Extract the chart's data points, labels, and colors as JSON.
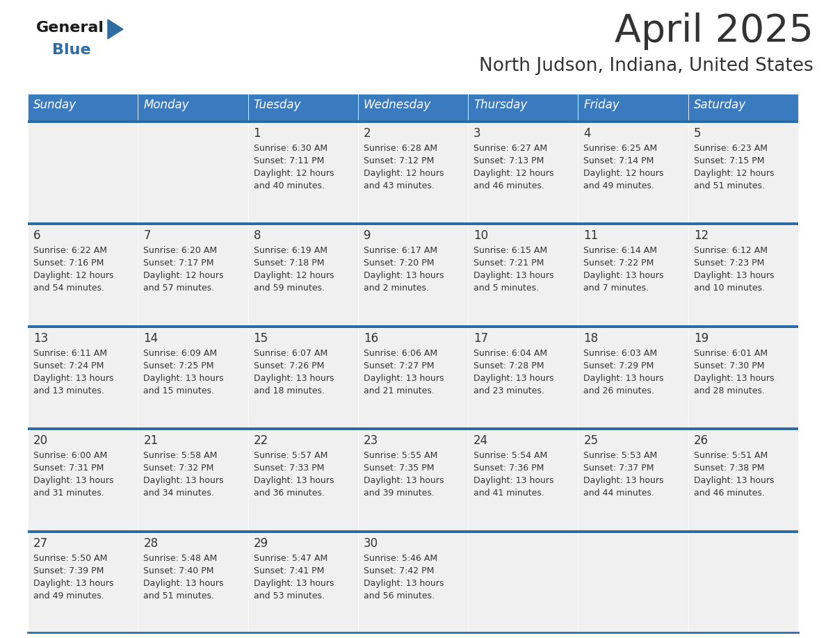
{
  "title": "April 2025",
  "subtitle": "North Judson, Indiana, United States",
  "days_of_week": [
    "Sunday",
    "Monday",
    "Tuesday",
    "Wednesday",
    "Thursday",
    "Friday",
    "Saturday"
  ],
  "header_bg": "#3a7abf",
  "header_text": "#ffffff",
  "cell_bg": "#f0f0f0",
  "row_line_color": "#2e6da4",
  "text_color": "#333333",
  "logo_black": "#1a1a1a",
  "logo_blue": "#2e6da4",
  "calendar": [
    [
      {
        "day": "",
        "sunrise": "",
        "sunset": "",
        "daylight1": "",
        "daylight2": ""
      },
      {
        "day": "",
        "sunrise": "",
        "sunset": "",
        "daylight1": "",
        "daylight2": ""
      },
      {
        "day": "1",
        "sunrise": "Sunrise: 6:30 AM",
        "sunset": "Sunset: 7:11 PM",
        "daylight1": "Daylight: 12 hours",
        "daylight2": "and 40 minutes."
      },
      {
        "day": "2",
        "sunrise": "Sunrise: 6:28 AM",
        "sunset": "Sunset: 7:12 PM",
        "daylight1": "Daylight: 12 hours",
        "daylight2": "and 43 minutes."
      },
      {
        "day": "3",
        "sunrise": "Sunrise: 6:27 AM",
        "sunset": "Sunset: 7:13 PM",
        "daylight1": "Daylight: 12 hours",
        "daylight2": "and 46 minutes."
      },
      {
        "day": "4",
        "sunrise": "Sunrise: 6:25 AM",
        "sunset": "Sunset: 7:14 PM",
        "daylight1": "Daylight: 12 hours",
        "daylight2": "and 49 minutes."
      },
      {
        "day": "5",
        "sunrise": "Sunrise: 6:23 AM",
        "sunset": "Sunset: 7:15 PM",
        "daylight1": "Daylight: 12 hours",
        "daylight2": "and 51 minutes."
      }
    ],
    [
      {
        "day": "6",
        "sunrise": "Sunrise: 6:22 AM",
        "sunset": "Sunset: 7:16 PM",
        "daylight1": "Daylight: 12 hours",
        "daylight2": "and 54 minutes."
      },
      {
        "day": "7",
        "sunrise": "Sunrise: 6:20 AM",
        "sunset": "Sunset: 7:17 PM",
        "daylight1": "Daylight: 12 hours",
        "daylight2": "and 57 minutes."
      },
      {
        "day": "8",
        "sunrise": "Sunrise: 6:19 AM",
        "sunset": "Sunset: 7:18 PM",
        "daylight1": "Daylight: 12 hours",
        "daylight2": "and 59 minutes."
      },
      {
        "day": "9",
        "sunrise": "Sunrise: 6:17 AM",
        "sunset": "Sunset: 7:20 PM",
        "daylight1": "Daylight: 13 hours",
        "daylight2": "and 2 minutes."
      },
      {
        "day": "10",
        "sunrise": "Sunrise: 6:15 AM",
        "sunset": "Sunset: 7:21 PM",
        "daylight1": "Daylight: 13 hours",
        "daylight2": "and 5 minutes."
      },
      {
        "day": "11",
        "sunrise": "Sunrise: 6:14 AM",
        "sunset": "Sunset: 7:22 PM",
        "daylight1": "Daylight: 13 hours",
        "daylight2": "and 7 minutes."
      },
      {
        "day": "12",
        "sunrise": "Sunrise: 6:12 AM",
        "sunset": "Sunset: 7:23 PM",
        "daylight1": "Daylight: 13 hours",
        "daylight2": "and 10 minutes."
      }
    ],
    [
      {
        "day": "13",
        "sunrise": "Sunrise: 6:11 AM",
        "sunset": "Sunset: 7:24 PM",
        "daylight1": "Daylight: 13 hours",
        "daylight2": "and 13 minutes."
      },
      {
        "day": "14",
        "sunrise": "Sunrise: 6:09 AM",
        "sunset": "Sunset: 7:25 PM",
        "daylight1": "Daylight: 13 hours",
        "daylight2": "and 15 minutes."
      },
      {
        "day": "15",
        "sunrise": "Sunrise: 6:07 AM",
        "sunset": "Sunset: 7:26 PM",
        "daylight1": "Daylight: 13 hours",
        "daylight2": "and 18 minutes."
      },
      {
        "day": "16",
        "sunrise": "Sunrise: 6:06 AM",
        "sunset": "Sunset: 7:27 PM",
        "daylight1": "Daylight: 13 hours",
        "daylight2": "and 21 minutes."
      },
      {
        "day": "17",
        "sunrise": "Sunrise: 6:04 AM",
        "sunset": "Sunset: 7:28 PM",
        "daylight1": "Daylight: 13 hours",
        "daylight2": "and 23 minutes."
      },
      {
        "day": "18",
        "sunrise": "Sunrise: 6:03 AM",
        "sunset": "Sunset: 7:29 PM",
        "daylight1": "Daylight: 13 hours",
        "daylight2": "and 26 minutes."
      },
      {
        "day": "19",
        "sunrise": "Sunrise: 6:01 AM",
        "sunset": "Sunset: 7:30 PM",
        "daylight1": "Daylight: 13 hours",
        "daylight2": "and 28 minutes."
      }
    ],
    [
      {
        "day": "20",
        "sunrise": "Sunrise: 6:00 AM",
        "sunset": "Sunset: 7:31 PM",
        "daylight1": "Daylight: 13 hours",
        "daylight2": "and 31 minutes."
      },
      {
        "day": "21",
        "sunrise": "Sunrise: 5:58 AM",
        "sunset": "Sunset: 7:32 PM",
        "daylight1": "Daylight: 13 hours",
        "daylight2": "and 34 minutes."
      },
      {
        "day": "22",
        "sunrise": "Sunrise: 5:57 AM",
        "sunset": "Sunset: 7:33 PM",
        "daylight1": "Daylight: 13 hours",
        "daylight2": "and 36 minutes."
      },
      {
        "day": "23",
        "sunrise": "Sunrise: 5:55 AM",
        "sunset": "Sunset: 7:35 PM",
        "daylight1": "Daylight: 13 hours",
        "daylight2": "and 39 minutes."
      },
      {
        "day": "24",
        "sunrise": "Sunrise: 5:54 AM",
        "sunset": "Sunset: 7:36 PM",
        "daylight1": "Daylight: 13 hours",
        "daylight2": "and 41 minutes."
      },
      {
        "day": "25",
        "sunrise": "Sunrise: 5:53 AM",
        "sunset": "Sunset: 7:37 PM",
        "daylight1": "Daylight: 13 hours",
        "daylight2": "and 44 minutes."
      },
      {
        "day": "26",
        "sunrise": "Sunrise: 5:51 AM",
        "sunset": "Sunset: 7:38 PM",
        "daylight1": "Daylight: 13 hours",
        "daylight2": "and 46 minutes."
      }
    ],
    [
      {
        "day": "27",
        "sunrise": "Sunrise: 5:50 AM",
        "sunset": "Sunset: 7:39 PM",
        "daylight1": "Daylight: 13 hours",
        "daylight2": "and 49 minutes."
      },
      {
        "day": "28",
        "sunrise": "Sunrise: 5:48 AM",
        "sunset": "Sunset: 7:40 PM",
        "daylight1": "Daylight: 13 hours",
        "daylight2": "and 51 minutes."
      },
      {
        "day": "29",
        "sunrise": "Sunrise: 5:47 AM",
        "sunset": "Sunset: 7:41 PM",
        "daylight1": "Daylight: 13 hours",
        "daylight2": "and 53 minutes."
      },
      {
        "day": "30",
        "sunrise": "Sunrise: 5:46 AM",
        "sunset": "Sunset: 7:42 PM",
        "daylight1": "Daylight: 13 hours",
        "daylight2": "and 56 minutes."
      },
      {
        "day": "",
        "sunrise": "",
        "sunset": "",
        "daylight1": "",
        "daylight2": ""
      },
      {
        "day": "",
        "sunrise": "",
        "sunset": "",
        "daylight1": "",
        "daylight2": ""
      },
      {
        "day": "",
        "sunrise": "",
        "sunset": "",
        "daylight1": "",
        "daylight2": ""
      }
    ]
  ]
}
